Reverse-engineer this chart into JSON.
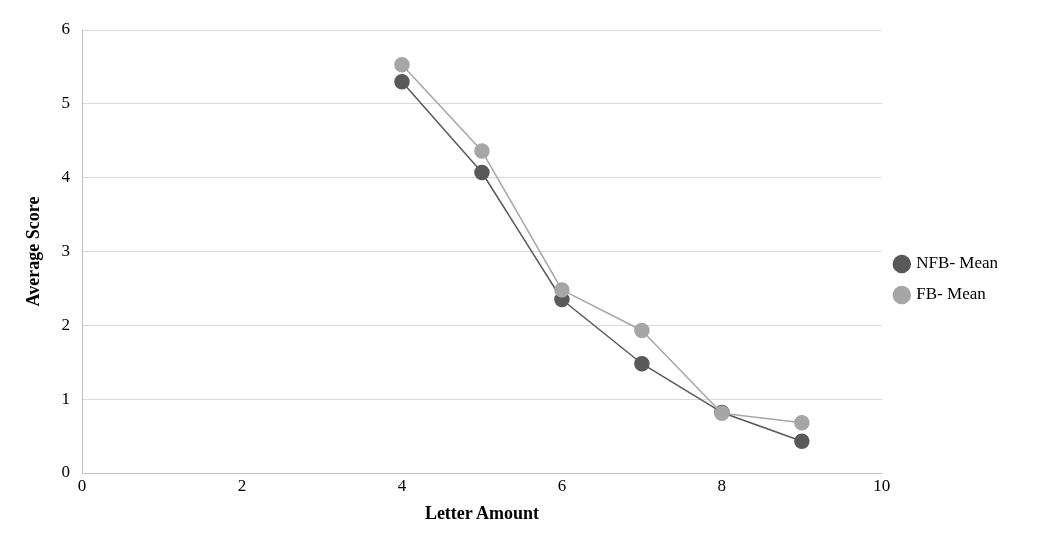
{
  "chart_data": {
    "type": "line",
    "xlabel": "Letter Amount",
    "ylabel": "Average Score",
    "x": [
      4,
      5,
      6,
      7,
      8,
      9
    ],
    "series": [
      {
        "name": "NFB- Mean",
        "color": "#595959",
        "values": [
          5.3,
          4.07,
          2.35,
          1.48,
          0.82,
          0.43
        ]
      },
      {
        "name": "FB- Mean",
        "color": "#a6a6a6",
        "values": [
          5.53,
          4.36,
          2.48,
          1.93,
          0.81,
          0.68
        ]
      }
    ],
    "xlim": [
      0,
      10
    ],
    "xticks": [
      0,
      2,
      4,
      6,
      8,
      10
    ],
    "ylim": [
      0,
      6
    ],
    "yticks": [
      0,
      1,
      2,
      3,
      4,
      5,
      6
    ],
    "grid": "y",
    "legend": "right",
    "marker": "circle"
  }
}
